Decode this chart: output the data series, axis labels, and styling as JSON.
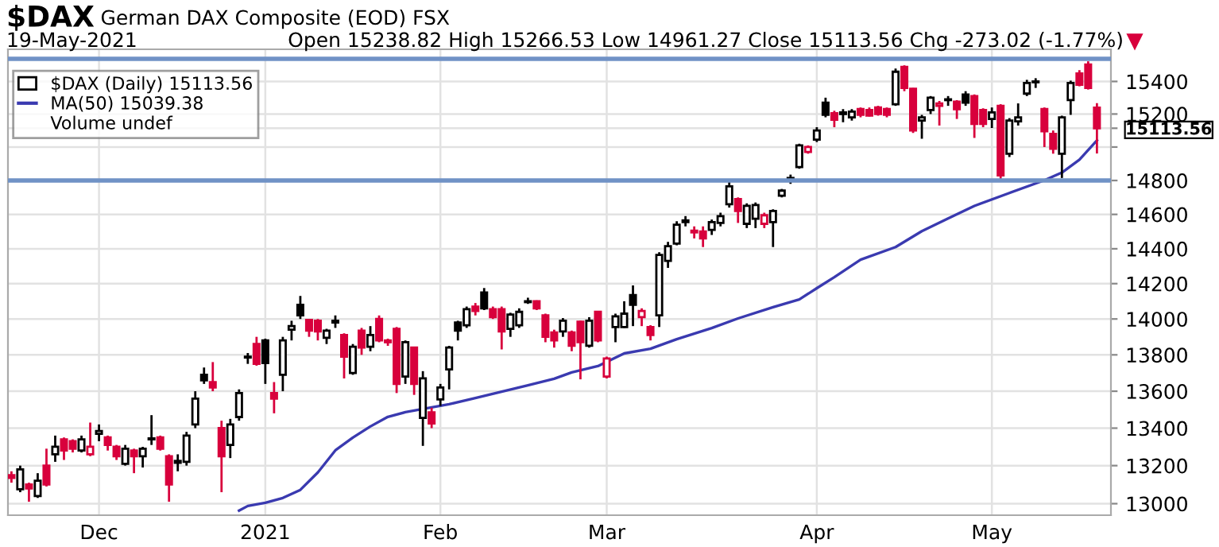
{
  "chart_data": {
    "type": "candlestick",
    "title": "$DAX",
    "subtitle": "German DAX Composite (EOD) FSX",
    "categories": [
      null,
      null,
      null,
      null,
      null,
      null,
      null,
      null,
      null,
      null,
      "Dec",
      null,
      null,
      null,
      null,
      null,
      null,
      null,
      null,
      null,
      null,
      null,
      null,
      null,
      null,
      null,
      null,
      null,
      null,
      "2021",
      null,
      null,
      null,
      null,
      null,
      null,
      null,
      null,
      null,
      null,
      null,
      null,
      null,
      null,
      null,
      null,
      null,
      null,
      null,
      "Feb",
      null,
      null,
      null,
      null,
      null,
      null,
      null,
      null,
      null,
      null,
      null,
      null,
      null,
      null,
      null,
      null,
      null,
      null,
      "Mar",
      null,
      null,
      null,
      null,
      null,
      null,
      null,
      null,
      null,
      null,
      null,
      null,
      null,
      null,
      null,
      null,
      null,
      null,
      null,
      null,
      null,
      null,
      null,
      "Apr",
      null,
      null,
      null,
      null,
      null,
      null,
      null,
      null,
      null,
      null,
      null,
      null,
      null,
      null,
      null,
      null,
      null,
      null,
      null,
      "May",
      null,
      null,
      null,
      null,
      null,
      null,
      null,
      null,
      null,
      null,
      null,
      null
    ],
    "series": [
      {
        "name": "$DAX (Daily) 15113.56",
        "ohlc": [
          [
            13150,
            13170,
            13110,
            13135
          ],
          [
            13075,
            13200,
            13060,
            13180
          ],
          [
            13100,
            13110,
            13010,
            13080
          ],
          [
            13040,
            13160,
            13030,
            13120
          ],
          [
            13200,
            13290,
            13090,
            13100
          ],
          [
            13260,
            13360,
            13220,
            13300
          ],
          [
            13340,
            13350,
            13230,
            13280
          ],
          [
            13330,
            13340,
            13270,
            13290
          ],
          [
            13280,
            13360,
            13270,
            13340
          ],
          [
            13260,
            13430,
            13250,
            13300
          ],
          [
            13370,
            13420,
            13330,
            13385
          ],
          [
            13350,
            13360,
            13280,
            13310
          ],
          [
            13300,
            13310,
            13230,
            13250
          ],
          [
            13210,
            13310,
            13200,
            13290
          ],
          [
            13280,
            13290,
            13160,
            13250
          ],
          [
            13250,
            13300,
            13190,
            13290
          ],
          [
            13345,
            13470,
            13310,
            13340
          ],
          [
            13350,
            13360,
            13280,
            13290
          ],
          [
            13250,
            13260,
            13010,
            13100
          ],
          [
            13215,
            13260,
            13170,
            13225
          ],
          [
            13220,
            13380,
            13200,
            13360
          ],
          [
            13420,
            13600,
            13400,
            13560
          ],
          [
            13690,
            13730,
            13640,
            13660
          ],
          [
            13650,
            13760,
            13600,
            13620
          ],
          [
            13400,
            13440,
            13060,
            13250
          ],
          [
            13310,
            13450,
            13240,
            13420
          ],
          [
            13460,
            13610,
            13440,
            13590
          ],
          [
            13790,
            13810,
            13750,
            13785
          ],
          [
            13860,
            13900,
            13740,
            13750
          ],
          [
            13880,
            13890,
            13640,
            13755
          ],
          [
            13590,
            13650,
            13480,
            13560
          ],
          [
            13690,
            13900,
            13600,
            13880
          ],
          [
            13940,
            13990,
            13880,
            13960
          ],
          [
            14080,
            14130,
            14000,
            14020
          ],
          [
            13995,
            14000,
            13900,
            13935
          ],
          [
            13990,
            14000,
            13880,
            13930
          ],
          [
            13895,
            13945,
            13860,
            13935
          ],
          [
            13990,
            14020,
            13950,
            13980
          ],
          [
            13910,
            13920,
            13670,
            13790
          ],
          [
            13700,
            13860,
            13690,
            13845
          ],
          [
            13935,
            13950,
            13800,
            13840
          ],
          [
            13845,
            13960,
            13820,
            13910
          ],
          [
            14000,
            14020,
            13870,
            13880
          ],
          [
            13880,
            13890,
            13850,
            13870
          ],
          [
            13945,
            13955,
            13590,
            13640
          ],
          [
            13680,
            13880,
            13640,
            13870
          ],
          [
            13840,
            13845,
            13580,
            13640
          ],
          [
            13455,
            13710,
            13305,
            13670
          ],
          [
            13485,
            13510,
            13400,
            13425
          ],
          [
            13555,
            13640,
            13520,
            13620
          ],
          [
            13720,
            13850,
            13610,
            13840
          ],
          [
            13980,
            13990,
            13880,
            13935
          ],
          [
            13965,
            14070,
            13950,
            14055
          ],
          [
            14070,
            14090,
            14020,
            14045
          ],
          [
            14150,
            14175,
            14050,
            14060
          ],
          [
            14055,
            14070,
            14000,
            14010
          ],
          [
            14055,
            14070,
            13830,
            13930
          ],
          [
            13945,
            14035,
            13900,
            14025
          ],
          [
            13965,
            14060,
            13950,
            14040
          ],
          [
            14100,
            14120,
            14085,
            14095
          ],
          [
            14100,
            14105,
            14050,
            14060
          ],
          [
            14020,
            14030,
            13870,
            13900
          ],
          [
            13925,
            13940,
            13840,
            13880
          ],
          [
            13930,
            14005,
            13900,
            13990
          ],
          [
            13925,
            13935,
            13820,
            13850
          ],
          [
            13985,
            13990,
            13665,
            13870
          ],
          [
            13850,
            14010,
            13840,
            13990
          ],
          [
            14040,
            14045,
            13870,
            13880
          ],
          [
            13680,
            13790,
            13670,
            13780
          ],
          [
            13955,
            14030,
            13870,
            14015
          ],
          [
            13955,
            14100,
            13950,
            14030
          ],
          [
            14135,
            14190,
            13960,
            14080
          ],
          [
            14010,
            14060,
            13960,
            14045
          ],
          [
            13955,
            13965,
            13880,
            13910
          ],
          [
            14020,
            14380,
            13955,
            14365
          ],
          [
            14330,
            14440,
            14290,
            14415
          ],
          [
            14430,
            14560,
            14420,
            14540
          ],
          [
            14565,
            14590,
            14530,
            14555
          ],
          [
            14505,
            14530,
            14460,
            14495
          ],
          [
            14500,
            14530,
            14410,
            14460
          ],
          [
            14510,
            14570,
            14480,
            14555
          ],
          [
            14550,
            14610,
            14530,
            14590
          ],
          [
            14660,
            14805,
            14640,
            14765
          ],
          [
            14690,
            14700,
            14550,
            14620
          ],
          [
            14545,
            14665,
            14520,
            14650
          ],
          [
            14575,
            14670,
            14520,
            14655
          ],
          [
            14545,
            14610,
            14520,
            14595
          ],
          [
            14555,
            14630,
            14410,
            14620
          ],
          [
            14710,
            14750,
            14700,
            14740
          ],
          [
            14815,
            14835,
            14780,
            14805
          ],
          [
            14880,
            15020,
            14870,
            15010
          ],
          [
            14970,
            15010,
            14960,
            15000
          ],
          [
            15045,
            15120,
            15030,
            15100
          ],
          [
            15270,
            15300,
            15180,
            15195
          ],
          [
            15205,
            15220,
            15120,
            15165
          ],
          [
            15210,
            15230,
            15150,
            15200
          ],
          [
            15180,
            15230,
            15160,
            15215
          ],
          [
            15230,
            15240,
            15180,
            15195
          ],
          [
            15225,
            15240,
            15185,
            15190
          ],
          [
            15240,
            15250,
            15190,
            15200
          ],
          [
            15230,
            15240,
            15180,
            15195
          ],
          [
            15260,
            15480,
            15250,
            15460
          ],
          [
            15490,
            15500,
            15340,
            15360
          ],
          [
            15355,
            15360,
            15085,
            15100
          ],
          [
            15160,
            15195,
            15050,
            15180
          ],
          [
            15225,
            15310,
            15200,
            15300
          ],
          [
            15250,
            15280,
            15130,
            15265
          ],
          [
            15290,
            15310,
            15250,
            15285
          ],
          [
            15275,
            15285,
            15170,
            15230
          ],
          [
            15320,
            15340,
            15250,
            15270
          ],
          [
            15310,
            15320,
            15055,
            15140
          ],
          [
            15225,
            15235,
            15120,
            15140
          ],
          [
            15170,
            15240,
            15115,
            15210
          ],
          [
            15250,
            15260,
            14810,
            14830
          ],
          [
            14960,
            15175,
            14940,
            15160
          ],
          [
            15155,
            15265,
            15130,
            15180
          ],
          [
            15325,
            15410,
            15310,
            15390
          ],
          [
            15400,
            15420,
            15360,
            15395
          ],
          [
            15230,
            15240,
            15000,
            15095
          ],
          [
            15080,
            15100,
            14960,
            14990
          ],
          [
            14960,
            15190,
            14815,
            15180
          ],
          [
            15285,
            15405,
            15195,
            15390
          ],
          [
            15450,
            15470,
            15370,
            15380
          ],
          [
            15505,
            15525,
            15350,
            15360
          ],
          [
            15238.82,
            15266.53,
            14961.27,
            15113.56
          ]
        ],
        "colors": [
          "#d8003c",
          "#000000",
          "#d8003c",
          "#000000",
          "#d8003c",
          "#000000",
          "#d8003c",
          "#d8003c",
          "#000000",
          "#d8003c",
          "#000000",
          "#d8003c",
          "#d8003c",
          "#000000",
          "#d8003c",
          "#000000",
          "#000000",
          "#d8003c",
          "#d8003c",
          "#000000",
          "#000000",
          "#000000",
          "#000000",
          "#d8003c",
          "#d8003c",
          "#000000",
          "#000000",
          "#000000",
          "#d8003c",
          "#000000",
          "#d8003c",
          "#000000",
          "#000000",
          "#000000",
          "#d8003c",
          "#d8003c",
          "#000000",
          "#000000",
          "#d8003c",
          "#000000",
          "#d8003c",
          "#000000",
          "#d8003c",
          "#d8003c",
          "#d8003c",
          "#000000",
          "#d8003c",
          "#000000",
          "#d8003c",
          "#000000",
          "#000000",
          "#000000",
          "#000000",
          "#d8003c",
          "#000000",
          "#d8003c",
          "#d8003c",
          "#000000",
          "#000000",
          "#000000",
          "#d8003c",
          "#d8003c",
          "#d8003c",
          "#000000",
          "#d8003c",
          "#d8003c",
          "#000000",
          "#d8003c",
          "#d8003c",
          "#000000",
          "#000000",
          "#000000",
          "#d8003c",
          "#d8003c",
          "#000000",
          "#000000",
          "#000000",
          "#000000",
          "#d8003c",
          "#d8003c",
          "#000000",
          "#000000",
          "#000000",
          "#d8003c",
          "#000000",
          "#000000",
          "#d8003c",
          "#000000",
          "#000000",
          "#000000",
          "#000000",
          "#d8003c",
          "#000000",
          "#000000",
          "#d8003c",
          "#000000",
          "#000000",
          "#d8003c",
          "#d8003c",
          "#d8003c",
          "#d8003c",
          "#000000",
          "#d8003c",
          "#d8003c",
          "#000000",
          "#000000",
          "#d8003c",
          "#000000",
          "#d8003c",
          "#000000",
          "#d8003c",
          "#d8003c",
          "#000000",
          "#d8003c",
          "#000000",
          "#000000",
          "#000000",
          "#000000",
          "#d8003c",
          "#d8003c",
          "#000000",
          "#000000",
          "#d8003c",
          "#d8003c",
          "#d8003c"
        ]
      },
      {
        "name": "MA(50) 15039.38",
        "type": "line",
        "color": "#3a3ab0",
        "values": [
          null,
          null,
          null,
          null,
          null,
          null,
          null,
          null,
          null,
          null,
          null,
          null,
          null,
          null,
          null,
          null,
          null,
          null,
          null,
          null,
          null,
          null,
          null,
          null,
          null,
          null,
          12964,
          12988,
          null,
          13005,
          null,
          13030,
          null,
          13072,
          null,
          13164,
          null,
          13281,
          null,
          13349,
          null,
          13409,
          null,
          13461,
          null,
          13486,
          null,
          null,
          13512,
          null,
          13529,
          null,
          null,
          13563,
          null,
          null,
          13598,
          null,
          null,
          13632,
          null,
          null,
          13668,
          null,
          13703,
          null,
          null,
          13738,
          null,
          null,
          13808,
          null,
          null,
          13834,
          null,
          null,
          13887,
          null,
          null,
          null,
          13949,
          null,
          null,
          14003,
          null,
          null,
          null,
          14066,
          null,
          null,
          14110,
          null,
          14174,
          null,
          14237,
          null,
          null,
          14337,
          null,
          null,
          null,
          14410,
          null,
          null,
          14502,
          null,
          null,
          14576,
          null,
          null,
          14650,
          null,
          null,
          null,
          14726,
          null,
          null,
          null,
          14801,
          null,
          14847,
          null,
          14924,
          null,
          15039.38
        ]
      }
    ],
    "ylim": [
      12940,
      15600
    ],
    "yticks": [
      13000,
      13200,
      13400,
      13600,
      13800,
      14000,
      14200,
      14400,
      14600,
      14800,
      {
        "value": 15000,
        "label": null
      },
      {
        "value": 15113.56,
        "label": "15113.56"
      },
      15200,
      15400
    ],
    "log": "y",
    "grid": true,
    "legend": "top left",
    "ref_lines": [
      {
        "axis": "y",
        "value": 15540,
        "color": "#7092c6"
      },
      {
        "axis": "y",
        "value": 14800,
        "color": "#7092c6"
      }
    ],
    "annotations": [
      "19-May-2021",
      "Open 15238.82 High 15266.53 Low 14961.27 Close 15113.56 Chg -273.02 (-1.77%)",
      "Volume undef"
    ]
  }
}
